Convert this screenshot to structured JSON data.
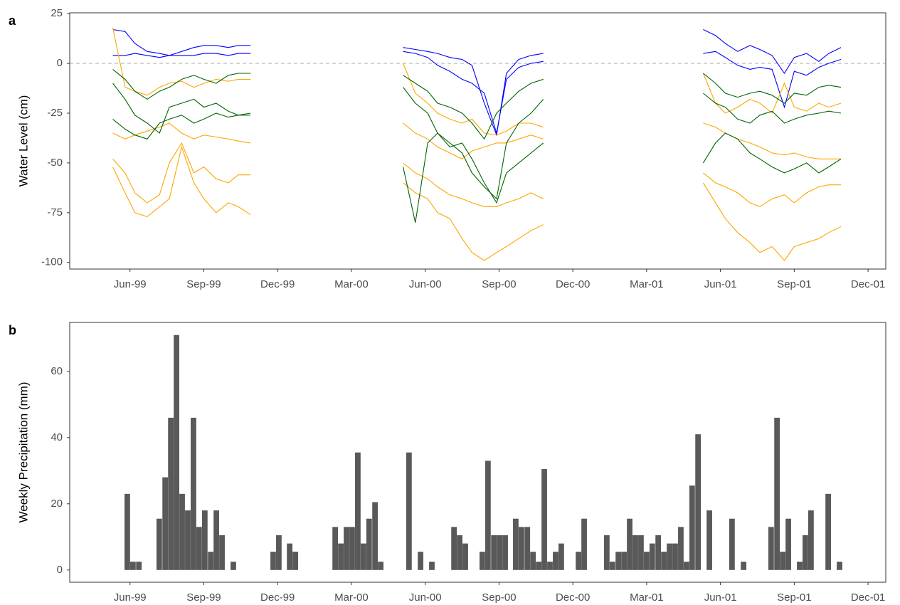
{
  "chart_data": [
    {
      "type": "line",
      "panel_label": "a",
      "y_label": "Water Level (cm)",
      "xlim": [
        2.55,
        35.72
      ],
      "ylim": [
        -103.3,
        25.4
      ],
      "xticks": [
        {
          "value": 5,
          "label": "Jun-99"
        },
        {
          "value": 8,
          "label": "Sep-99"
        },
        {
          "value": 11,
          "label": "Dec-99"
        },
        {
          "value": 14,
          "label": "Mar-00"
        },
        {
          "value": 17,
          "label": "Jun-00"
        },
        {
          "value": 20,
          "label": "Sep-00"
        },
        {
          "value": 23,
          "label": "Dec-00"
        },
        {
          "value": 26,
          "label": "Mar-01"
        },
        {
          "value": 29,
          "label": "Jun-01"
        },
        {
          "value": 32,
          "label": "Sep-01"
        },
        {
          "value": 35,
          "label": "Dec-01"
        }
      ],
      "yticks": [
        -100,
        -75,
        -50,
        -25,
        0,
        25
      ],
      "hline": 0,
      "x": [
        4.3,
        4.8,
        5.2,
        5.7,
        6.2,
        6.6,
        7.1,
        7.6,
        8.0,
        8.5,
        9.0,
        9.4,
        9.9,
        13,
        16.1,
        16.6,
        17.1,
        17.5,
        18.0,
        18.5,
        18.9,
        19.4,
        19.9,
        20.3,
        20.8,
        21.3,
        21.8,
        25,
        28.3,
        28.8,
        29.2,
        29.7,
        30.2,
        30.6,
        31.1,
        31.6,
        32.0,
        32.5,
        33.0,
        33.4,
        33.9
      ],
      "series": [
        {
          "color": "#0000ff",
          "values": [
            17,
            16,
            10,
            6,
            5,
            4,
            6,
            8,
            9,
            9,
            8,
            9,
            9,
            null,
            8,
            7,
            6,
            5,
            3,
            2,
            -1,
            -20,
            -36,
            -5,
            2,
            4,
            5,
            null,
            17,
            14,
            10,
            6,
            9,
            7,
            4,
            -5,
            3,
            5,
            1,
            5,
            8
          ]
        },
        {
          "color": "#0000ff",
          "values": [
            4,
            4,
            5,
            4,
            3,
            4,
            4,
            4,
            5,
            5,
            4,
            5,
            5,
            null,
            6,
            5,
            3,
            -1,
            -4,
            -8,
            -10,
            -15,
            -35,
            -8,
            -2,
            0,
            1,
            null,
            5,
            6,
            3,
            -1,
            -3,
            -2,
            -3,
            -22,
            -4,
            -6,
            -2,
            0,
            2
          ]
        },
        {
          "color": "#ffa500",
          "values": [
            18,
            -12,
            -14,
            -16,
            -12,
            -10,
            -9,
            -12,
            -10,
            -8,
            -9,
            -8,
            -8,
            null,
            0,
            -15,
            -20,
            -25,
            -28,
            -30,
            -28,
            -35,
            -36,
            -34,
            -30,
            -30,
            -32,
            null,
            -5,
            -20,
            -25,
            -22,
            -18,
            -20,
            -25,
            -10,
            -22,
            -24,
            -20,
            -22,
            -20
          ]
        },
        {
          "color": "#ffa500",
          "values": [
            -35,
            -38,
            -36,
            -34,
            -32,
            -30,
            -35,
            -38,
            -36,
            -37,
            -38,
            -39,
            -40,
            null,
            -30,
            -35,
            -38,
            -42,
            -45,
            -48,
            -44,
            -42,
            -40,
            -40,
            -38,
            -36,
            -38,
            null,
            -30,
            -32,
            -35,
            -38,
            -40,
            -42,
            -45,
            -46,
            -45,
            -47,
            -48,
            -48,
            -48
          ]
        },
        {
          "color": "#ffa500",
          "values": [
            -48,
            -55,
            -65,
            -70,
            -66,
            -50,
            -40,
            -55,
            -52,
            -58,
            -60,
            -56,
            -56,
            null,
            -50,
            -55,
            -58,
            -62,
            -66,
            -68,
            -70,
            -72,
            -72,
            -70,
            -68,
            -65,
            -68,
            null,
            -55,
            -60,
            -62,
            -65,
            -70,
            -72,
            -68,
            -66,
            -70,
            -65,
            -62,
            -61,
            -61
          ]
        },
        {
          "color": "#ffa500",
          "values": [
            -52,
            -65,
            -75,
            -77,
            -72,
            -68,
            -42,
            -60,
            -68,
            -75,
            -70,
            -72,
            -76,
            null,
            -60,
            -65,
            -68,
            -75,
            -78,
            -88,
            -95,
            -99,
            -95,
            -92,
            -88,
            -84,
            -81,
            null,
            -60,
            -70,
            -78,
            -85,
            -90,
            -95,
            -92,
            -99,
            -92,
            -90,
            -88,
            -85,
            -82
          ]
        },
        {
          "color": "#006400",
          "values": [
            -3,
            -8,
            -14,
            -18,
            -14,
            -12,
            -8,
            -6,
            -8,
            -10,
            -6,
            -5,
            -5,
            null,
            -6,
            -10,
            -14,
            -20,
            -22,
            -25,
            -30,
            -38,
            -25,
            -20,
            -14,
            -10,
            -8,
            null,
            -5,
            -10,
            -15,
            -17,
            -15,
            -14,
            -16,
            -20,
            -15,
            -16,
            -12,
            -11,
            -12
          ]
        },
        {
          "color": "#006400",
          "values": [
            -10,
            -18,
            -26,
            -30,
            -35,
            -22,
            -20,
            -18,
            -22,
            -20,
            -24,
            -26,
            -25,
            null,
            -12,
            -20,
            -25,
            -35,
            -40,
            -45,
            -55,
            -62,
            -68,
            -40,
            -30,
            -25,
            -18,
            null,
            -15,
            -20,
            -22,
            -28,
            -30,
            -26,
            -24,
            -30,
            -28,
            -26,
            -25,
            -24,
            -25
          ]
        },
        {
          "color": "#006400",
          "values": [
            -28,
            -33,
            -36,
            -38,
            -30,
            -28,
            -26,
            -30,
            -28,
            -25,
            -27,
            -26,
            -26,
            null,
            -52,
            -80,
            -40,
            -35,
            -42,
            -40,
            -48,
            -60,
            -70,
            -55,
            -50,
            -45,
            -40,
            null,
            -50,
            -40,
            -35,
            -38,
            -45,
            -48,
            -52,
            -55,
            -53,
            -50,
            -55,
            -52,
            -48
          ]
        }
      ]
    },
    {
      "type": "bar",
      "panel_label": "b",
      "y_label": "Weekly Precipitation (mm)",
      "color": "#595959",
      "xlim": [
        2.55,
        35.72
      ],
      "ylim": [
        -3.7,
        74.8
      ],
      "xticks": [
        {
          "value": 5,
          "label": "Jun-99"
        },
        {
          "value": 8,
          "label": "Sep-99"
        },
        {
          "value": 11,
          "label": "Dec-99"
        },
        {
          "value": 14,
          "label": "Mar-00"
        },
        {
          "value": 17,
          "label": "Jun-00"
        },
        {
          "value": 20,
          "label": "Sep-00"
        },
        {
          "value": 23,
          "label": "Dec-00"
        },
        {
          "value": 26,
          "label": "Mar-01"
        },
        {
          "value": 29,
          "label": "Jun-01"
        },
        {
          "value": 32,
          "label": "Sep-01"
        },
        {
          "value": 35,
          "label": "Dec-01"
        }
      ],
      "yticks": [
        0,
        20,
        40,
        60
      ],
      "x": [
        4.89,
        5.12,
        5.36,
        6.19,
        6.43,
        6.66,
        6.89,
        7.12,
        7.35,
        7.58,
        7.81,
        8.04,
        8.28,
        8.51,
        8.74,
        9.2,
        10.82,
        11.05,
        11.49,
        11.72,
        13.34,
        13.57,
        13.8,
        14.03,
        14.26,
        14.49,
        14.72,
        14.96,
        15.19,
        16.34,
        16.81,
        17.27,
        18.17,
        18.4,
        18.63,
        19.32,
        19.55,
        19.79,
        20.02,
        20.25,
        20.68,
        20.91,
        21.15,
        21.38,
        21.61,
        21.84,
        22.07,
        22.3,
        22.53,
        23.23,
        23.46,
        24.38,
        24.61,
        24.85,
        25.08,
        25.31,
        25.54,
        25.77,
        26.0,
        26.23,
        26.47,
        26.7,
        26.93,
        27.16,
        27.39,
        27.62,
        27.85,
        28.09,
        28.55,
        29.47,
        29.94,
        31.06,
        31.3,
        31.53,
        31.76,
        32.22,
        32.45,
        32.68,
        33.38,
        33.84
      ],
      "values": [
        23,
        2.5,
        2.5,
        15.5,
        28,
        46,
        71,
        23,
        18,
        46,
        13,
        18,
        5.5,
        18,
        10.5,
        2.5,
        5.5,
        10.5,
        8,
        5.5,
        13,
        8,
        13,
        13,
        35.5,
        8,
        15.5,
        20.5,
        2.5,
        35.5,
        5.5,
        2.5,
        13,
        10.5,
        8,
        5.5,
        33,
        10.5,
        10.5,
        10.5,
        15.5,
        13,
        13,
        5.5,
        2.5,
        30.5,
        2.5,
        5.5,
        8,
        5.5,
        15.5,
        10.5,
        2.5,
        5.5,
        5.5,
        15.5,
        10.5,
        10.5,
        5.5,
        8,
        10.5,
        5.5,
        8,
        8,
        13,
        2.5,
        25.5,
        41,
        18,
        15.5,
        2.5,
        13,
        46,
        5.5,
        15.5,
        2.5,
        10.5,
        18,
        23,
        2.5
      ]
    }
  ]
}
